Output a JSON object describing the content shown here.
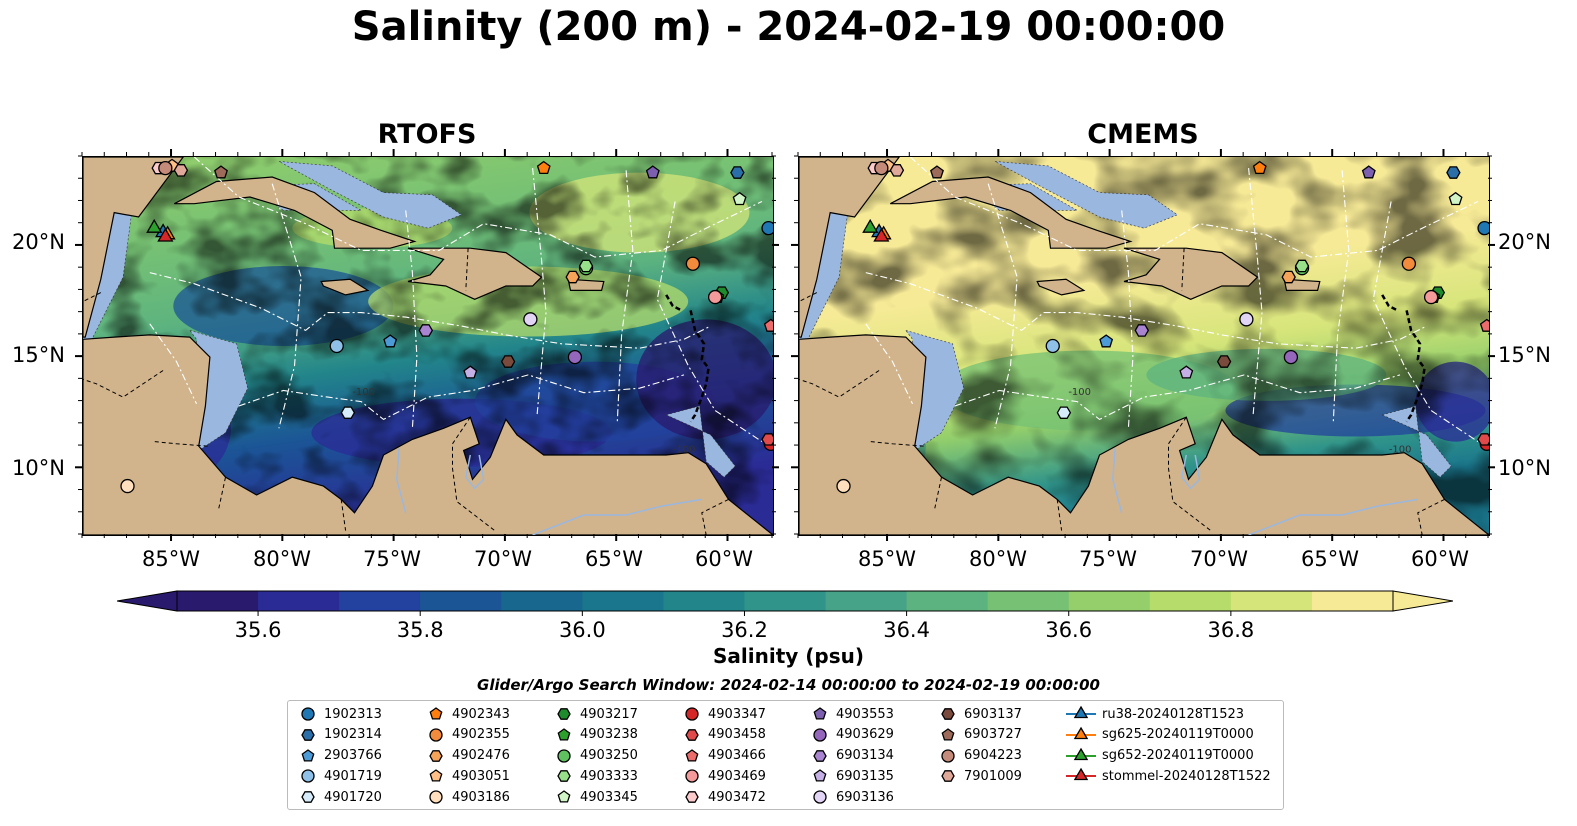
{
  "title": "Salinity (200 m) - 2024-02-19 00:00:00",
  "panels": [
    {
      "title": "RTOFS",
      "style": "rtofs"
    },
    {
      "title": "CMEMS",
      "style": "cmems"
    }
  ],
  "map": {
    "lon_range": [
      -89,
      -58
    ],
    "lat_range": [
      7,
      24
    ],
    "lon_ticks": [
      "85°W",
      "80°W",
      "75°W",
      "70°W",
      "65°W",
      "60°W"
    ],
    "lat_ticks": [
      "20°N",
      "15°N",
      "10°N"
    ],
    "contour_labels": [
      "-100",
      "-1000",
      "-100"
    ],
    "land_color": "#d2b48c",
    "shelf_color": "#9ab7e0"
  },
  "colorbar": {
    "label": "Salinity (psu)",
    "min": 35.5,
    "max": 37.0,
    "ticks": [
      "35.6",
      "35.8",
      "36.0",
      "36.2",
      "36.4",
      "36.6",
      "36.8"
    ],
    "colors": [
      "#2a1a6e",
      "#2b2b96",
      "#23419e",
      "#1b5596",
      "#18678f",
      "#1a768c",
      "#22858a",
      "#30948a",
      "#46a387",
      "#5db37f",
      "#76c174",
      "#94cf6b",
      "#b6dc6b",
      "#d6e57a",
      "#f7ea97"
    ],
    "extend": "both"
  },
  "search_window": "Glider/Argo Search Window: 2024-02-14 00:00:00 to 2024-02-19 00:00:00",
  "legend": [
    {
      "label": "1902313",
      "marker": "circle",
      "color": "#1f77b4"
    },
    {
      "label": "1902314",
      "marker": "hexagon",
      "color": "#2a6fa8"
    },
    {
      "label": "2903766",
      "marker": "pentagon",
      "color": "#4d9bd6"
    },
    {
      "label": "4901719",
      "marker": "circle",
      "color": "#8fc1e8"
    },
    {
      "label": "4901720",
      "marker": "hexagon",
      "color": "#d6ecfa"
    },
    {
      "label": "4902343",
      "marker": "pentagon",
      "color": "#ff7f0e"
    },
    {
      "label": "4902355",
      "marker": "circle",
      "color": "#f28c3c"
    },
    {
      "label": "4902476",
      "marker": "hexagon",
      "color": "#f6a35a"
    },
    {
      "label": "4903051",
      "marker": "pentagon",
      "color": "#ffbf86"
    },
    {
      "label": "4903186",
      "marker": "circle",
      "color": "#ffdfbd"
    },
    {
      "label": "4903217",
      "marker": "hexagon",
      "color": "#1e8c2c"
    },
    {
      "label": "4903238",
      "marker": "pentagon",
      "color": "#2ca02c"
    },
    {
      "label": "4903250",
      "marker": "circle",
      "color": "#5fc25f"
    },
    {
      "label": "4903333",
      "marker": "hexagon",
      "color": "#98df8a"
    },
    {
      "label": "4903345",
      "marker": "pentagon",
      "color": "#d2f5c8"
    },
    {
      "label": "4903347",
      "marker": "circle",
      "color": "#d62728"
    },
    {
      "label": "4903458",
      "marker": "hexagon",
      "color": "#e04a4a"
    },
    {
      "label": "4903466",
      "marker": "pentagon",
      "color": "#ec6b6b"
    },
    {
      "label": "4903469",
      "marker": "circle",
      "color": "#f59a9a"
    },
    {
      "label": "4903472",
      "marker": "hexagon",
      "color": "#fbcaca"
    },
    {
      "label": "4903553",
      "marker": "pentagon",
      "color": "#7d5fb0"
    },
    {
      "label": "4903629",
      "marker": "circle",
      "color": "#9467bd"
    },
    {
      "label": "6903134",
      "marker": "hexagon",
      "color": "#a985d1"
    },
    {
      "label": "6903135",
      "marker": "pentagon",
      "color": "#c5b0e6"
    },
    {
      "label": "6903136",
      "marker": "circle",
      "color": "#e2d4f5"
    },
    {
      "label": "6903137",
      "marker": "hexagon",
      "color": "#7a4a3c"
    },
    {
      "label": "6903727",
      "marker": "pentagon",
      "color": "#9e6b5b"
    },
    {
      "label": "6904223",
      "marker": "circle",
      "color": "#c48a7a"
    },
    {
      "label": "7901009",
      "marker": "hexagon",
      "color": "#e0a898"
    },
    {
      "label": "ru38-20240128T1523",
      "marker": "triangle",
      "color": "#1f77b4",
      "line": true
    },
    {
      "label": "sg625-20240119T0000",
      "marker": "triangle",
      "color": "#ff7f0e",
      "line": true
    },
    {
      "label": "sg652-20240119T0000",
      "marker": "triangle",
      "color": "#2ca02c",
      "line": true
    },
    {
      "label": "stommel-20240128T1522",
      "marker": "triangle",
      "color": "#d62728",
      "line": true
    }
  ],
  "floats": [
    {
      "id": "1902313",
      "lon": -58.2,
      "lat": 20.8
    },
    {
      "id": "1902314",
      "lon": -59.6,
      "lat": 23.3
    },
    {
      "id": "2903766",
      "lon": -75.2,
      "lat": 15.7
    },
    {
      "id": "4901719",
      "lon": -77.6,
      "lat": 15.5
    },
    {
      "id": "4901720",
      "lon": -77.1,
      "lat": 12.5
    },
    {
      "id": "4902343",
      "lon": -68.3,
      "lat": 23.5
    },
    {
      "id": "4902355",
      "lon": -61.6,
      "lat": 19.2
    },
    {
      "id": "4902476",
      "lon": -67.0,
      "lat": 18.6
    },
    {
      "id": "4903051",
      "lon": -85.0,
      "lat": 23.6
    },
    {
      "id": "4903186",
      "lon": -87.0,
      "lat": 9.2
    },
    {
      "id": "4903217",
      "lon": -60.3,
      "lat": 17.9
    },
    {
      "id": "4903238",
      "lon": -60.5,
      "lat": 17.7
    },
    {
      "id": "4903250",
      "lon": -66.4,
      "lat": 19.0
    },
    {
      "id": "4903333",
      "lon": -66.4,
      "lat": 19.1
    },
    {
      "id": "4903345",
      "lon": -59.5,
      "lat": 22.1
    },
    {
      "id": "4903347",
      "lon": -58.1,
      "lat": 11.1
    },
    {
      "id": "4903458",
      "lon": -58.2,
      "lat": 11.3
    },
    {
      "id": "4903466",
      "lon": -58.1,
      "lat": 16.4
    },
    {
      "id": "4903469",
      "lon": -60.6,
      "lat": 17.7
    },
    {
      "id": "4903472",
      "lon": -85.6,
      "lat": 23.5
    },
    {
      "id": "4903553",
      "lon": -63.4,
      "lat": 23.3
    },
    {
      "id": "4903629",
      "lon": -66.9,
      "lat": 15.0
    },
    {
      "id": "6903134",
      "lon": -73.6,
      "lat": 16.2
    },
    {
      "id": "6903135",
      "lon": -71.6,
      "lat": 14.3
    },
    {
      "id": "6903136",
      "lon": -68.9,
      "lat": 16.7
    },
    {
      "id": "6903137",
      "lon": -69.9,
      "lat": 14.8
    },
    {
      "id": "6903727",
      "lon": -82.8,
      "lat": 23.3
    },
    {
      "id": "6904223",
      "lon": -85.3,
      "lat": 23.5
    },
    {
      "id": "7901009",
      "lon": -84.6,
      "lat": 23.4
    }
  ],
  "gliders": [
    {
      "id": "ru38-20240128T1523",
      "lon": -85.4,
      "lat": 20.6
    },
    {
      "id": "sg625-20240119T0000",
      "lon": -85.2,
      "lat": 20.5
    },
    {
      "id": "sg652-20240119T0000",
      "lon": -85.8,
      "lat": 20.8
    },
    {
      "id": "stommel-20240128T1522",
      "lon": -85.3,
      "lat": 20.4
    }
  ]
}
